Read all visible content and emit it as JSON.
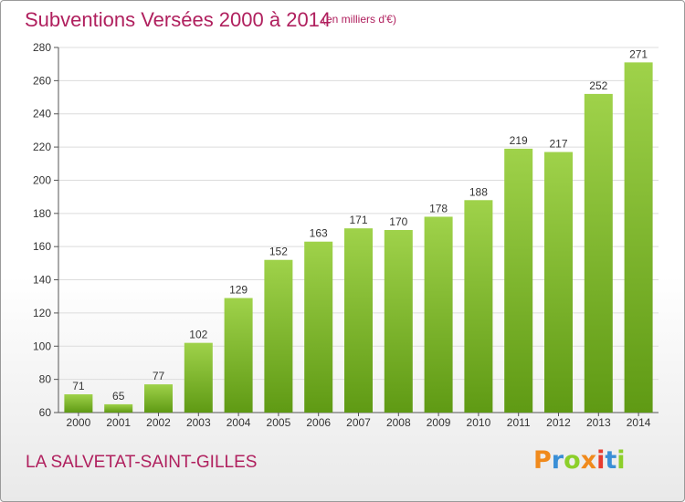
{
  "header": {
    "title": "Subventions Versées 2000 à 2014",
    "unit": "(en milliers d'€)"
  },
  "footer": {
    "commune": "LA SALVETAT-SAINT-GILLES",
    "logo_text": "Proxiti"
  },
  "colors": {
    "title": "#b0205e",
    "bar_light": "#9fd24a",
    "bar_dark": "#5f9a14",
    "grid": "#dcdcdc",
    "logo_letters": [
      "#f08a1c",
      "#3a8fd6",
      "#8ccf2a",
      "#f08a1c",
      "#e63b2e",
      "#3a8fd6",
      "#8ccf2a"
    ]
  },
  "chart_data": {
    "type": "bar",
    "title": "Subventions Versées 2000 à 2014",
    "subtitle": "(en milliers d'€)",
    "categories": [
      "2000",
      "2001",
      "2002",
      "2003",
      "2004",
      "2005",
      "2006",
      "2007",
      "2008",
      "2009",
      "2010",
      "2011",
      "2012",
      "2013",
      "2014"
    ],
    "values": [
      71,
      65,
      77,
      102,
      129,
      152,
      163,
      171,
      170,
      178,
      188,
      219,
      217,
      252,
      271
    ],
    "ylim": [
      60,
      280
    ],
    "yticks": [
      60,
      80,
      100,
      120,
      140,
      160,
      180,
      200,
      220,
      240,
      260,
      280
    ],
    "grid": true,
    "data_labels": true
  }
}
